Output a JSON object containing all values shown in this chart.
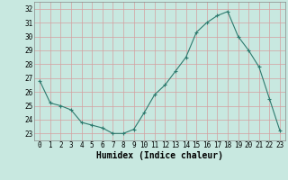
{
  "x": [
    0,
    1,
    2,
    3,
    4,
    5,
    6,
    7,
    8,
    9,
    10,
    11,
    12,
    13,
    14,
    15,
    16,
    17,
    18,
    19,
    20,
    21,
    22,
    23
  ],
  "y": [
    26.8,
    25.2,
    25.0,
    24.7,
    23.8,
    23.6,
    23.4,
    23.0,
    23.0,
    23.3,
    24.5,
    25.8,
    26.5,
    27.5,
    28.5,
    30.3,
    31.0,
    31.5,
    31.8,
    30.0,
    29.0,
    27.8,
    25.5,
    23.2
  ],
  "line_color": "#2d7a6e",
  "marker": "+",
  "bg_color": "#c8e8e0",
  "grid_color": "#d4a0a0",
  "xlabel": "Humidex (Indice chaleur)",
  "xlim": [
    -0.5,
    23.5
  ],
  "ylim": [
    22.5,
    32.5
  ],
  "yticks": [
    23,
    24,
    25,
    26,
    27,
    28,
    29,
    30,
    31,
    32
  ],
  "xticks": [
    0,
    1,
    2,
    3,
    4,
    5,
    6,
    7,
    8,
    9,
    10,
    11,
    12,
    13,
    14,
    15,
    16,
    17,
    18,
    19,
    20,
    21,
    22,
    23
  ],
  "tick_label_fontsize": 5.5,
  "xlabel_fontsize": 7.0
}
